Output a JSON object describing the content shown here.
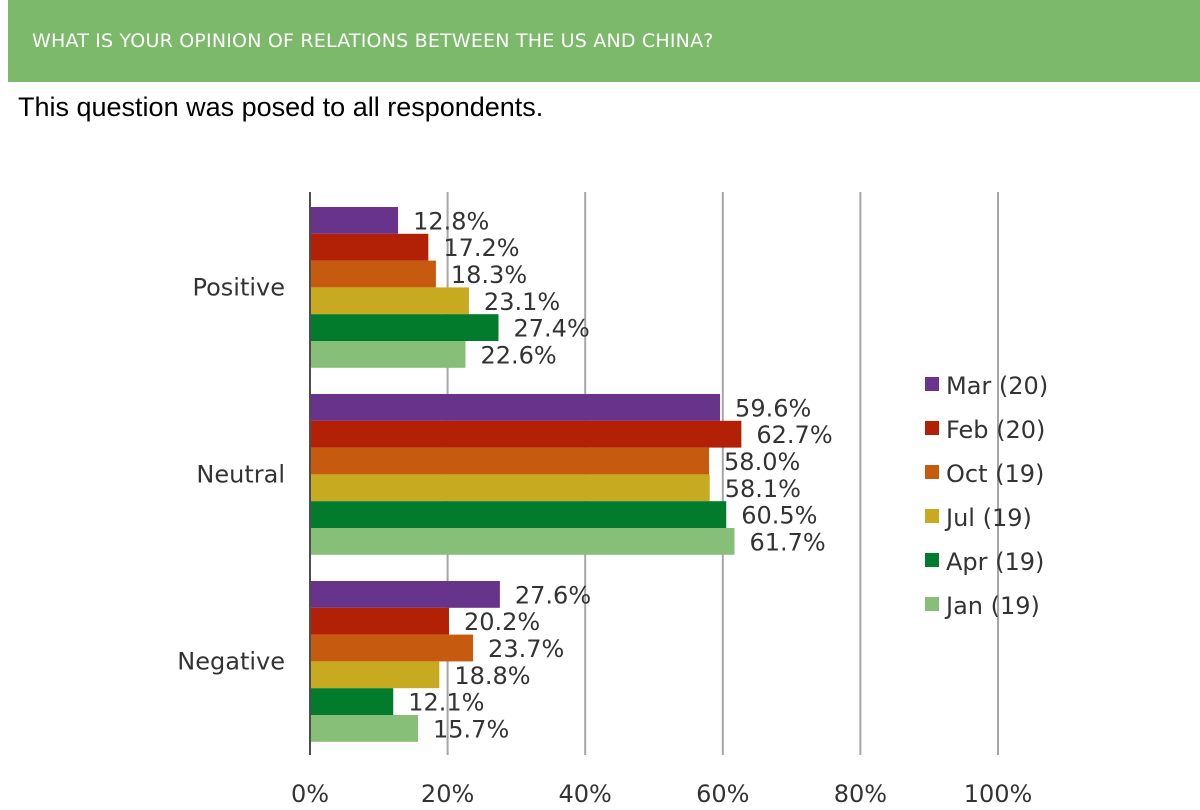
{
  "header": {
    "title": "WHAT IS YOUR OPINION OF RELATIONS BETWEEN THE US AND CHINA?"
  },
  "subtitle": "This question was posed to all respondents.",
  "colors": {
    "header_bg": "#7db96b",
    "series": [
      "#68338a",
      "#b22005",
      "#c65a0e",
      "#c7aa1f",
      "#027b2c",
      "#88bf78"
    ]
  },
  "chart_data": {
    "type": "bar",
    "orientation": "horizontal",
    "categories": [
      "Positive",
      "Neutral",
      "Negative"
    ],
    "series": [
      {
        "name": "Mar (20)",
        "values": [
          12.8,
          59.6,
          27.6
        ],
        "labels": [
          "12.8%",
          "59.6%",
          "27.6%"
        ]
      },
      {
        "name": "Feb (20)",
        "values": [
          17.2,
          62.7,
          20.2
        ],
        "labels": [
          "17.2%",
          "62.7%",
          "20.2%"
        ]
      },
      {
        "name": "Oct (19)",
        "values": [
          18.3,
          58.0,
          23.7
        ],
        "labels": [
          "18.3%",
          "58.0%",
          "23.7%"
        ]
      },
      {
        "name": "Jul (19)",
        "values": [
          23.1,
          58.1,
          18.8
        ],
        "labels": [
          "23.1%",
          "58.1%",
          "18.8%"
        ]
      },
      {
        "name": "Apr (19)",
        "values": [
          27.4,
          60.5,
          12.1
        ],
        "labels": [
          "27.4%",
          "60.5%",
          "12.1%"
        ]
      },
      {
        "name": "Jan (19)",
        "values": [
          22.6,
          61.7,
          15.7
        ],
        "labels": [
          "22.6%",
          "61.7%",
          "15.7%"
        ]
      }
    ],
    "xlim": [
      0,
      100
    ],
    "xticks": [
      0,
      20,
      40,
      60,
      80,
      100
    ],
    "xtick_labels": [
      "0%",
      "20%",
      "40%",
      "60%",
      "80%",
      "100%"
    ],
    "grid": true,
    "legend_position": "right"
  }
}
